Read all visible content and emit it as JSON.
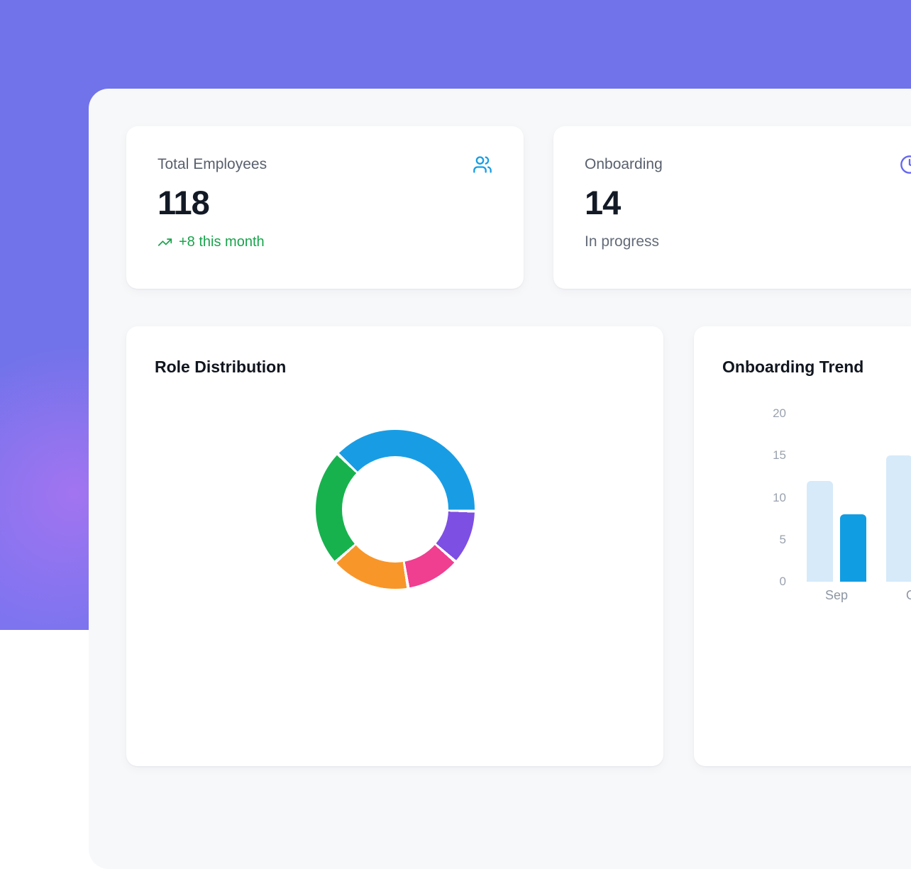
{
  "theme": {
    "background": "#7173ea",
    "panel_bg": "#f7f8fa",
    "card_bg": "#ffffff",
    "label_color": "#59606d",
    "value_color": "#131a26",
    "muted_color": "#636b78",
    "axis_label_color": "#9aa2ae",
    "trend_green": "#18a34b",
    "users_icon_blue": "#189de5",
    "clock_icon_indigo": "#6467f2"
  },
  "stats": [
    {
      "label": "Total Employees",
      "value": "118",
      "trend": "+8 this month",
      "icon": "users-icon"
    },
    {
      "label": "Onboarding",
      "value": "14",
      "sub": "In progress",
      "icon": "clock-icon"
    }
  ],
  "chart_data": [
    {
      "type": "pie",
      "title": "Role Distribution",
      "donut": true,
      "start_angle_deg": 314,
      "total": 118,
      "segments": [
        {
          "color": "#189de5",
          "value": 45
        },
        {
          "color": "#7e4fe3",
          "value": 13
        },
        {
          "color": "#f03e90",
          "value": 13
        },
        {
          "color": "#f8962a",
          "value": 19
        },
        {
          "color": "#17b24e",
          "value": 28
        }
      ],
      "legend_visible": false
    },
    {
      "type": "bar",
      "title": "Onboarding Trend",
      "categories": [
        "Sep",
        "Oct"
      ],
      "series": [
        {
          "name": "",
          "color": "#d6eaf9",
          "values": [
            12,
            15
          ]
        },
        {
          "name": "",
          "color": "#119de2",
          "values": [
            8,
            null
          ]
        }
      ],
      "ylabel": "",
      "xlabel": "",
      "ylim": [
        0,
        20
      ],
      "yticks": [
        0,
        5,
        10,
        15,
        20
      ],
      "grid": false,
      "legend_visible": false
    }
  ]
}
